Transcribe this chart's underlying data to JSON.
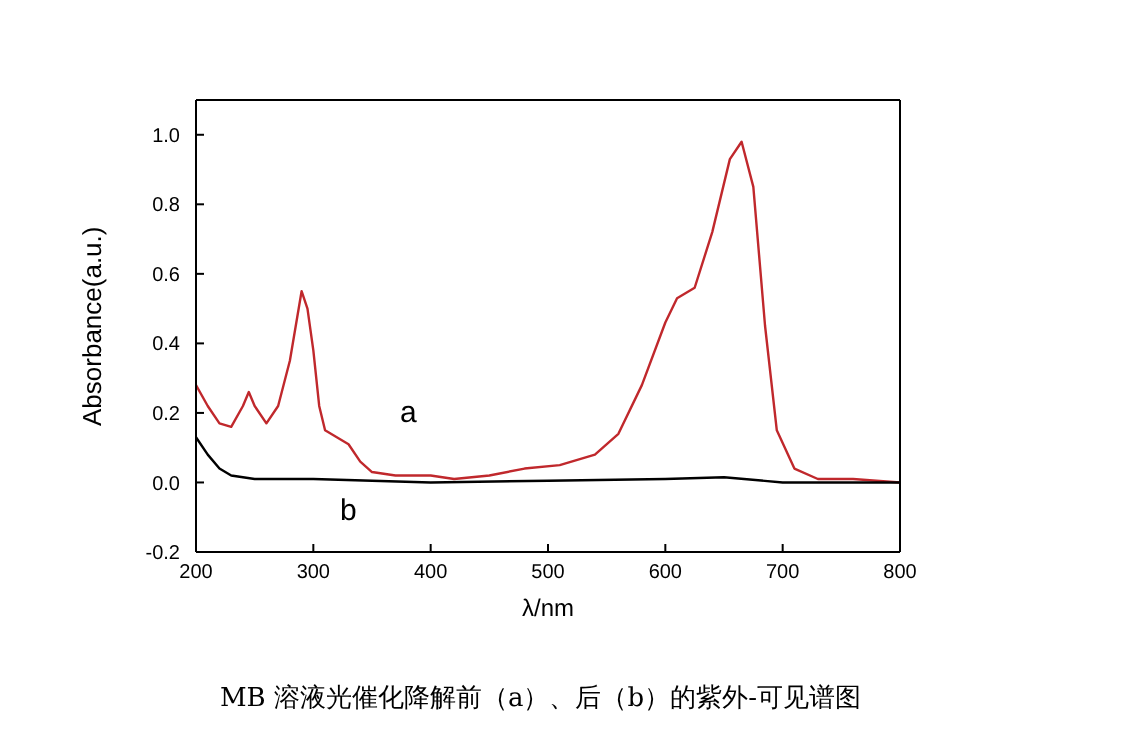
{
  "chart_data": {
    "type": "line",
    "xlabel": "λ/nm",
    "ylabel": "Absorbance(a.u.)",
    "xlim": [
      200,
      800
    ],
    "xticks": [
      200,
      300,
      400,
      500,
      600,
      700,
      800
    ],
    "ylim": [
      -0.2,
      1.1
    ],
    "yticks": [
      -0.2,
      {
        "value": 0,
        "label": "0.0"
      },
      0.2,
      0.4,
      0.6,
      0.8,
      {
        "value": 1,
        "label": "1.0"
      }
    ],
    "grid": false,
    "marker": "none",
    "line_style": "solid",
    "series": [
      {
        "color": "#c0282c",
        "x": [
          200,
          210,
          220,
          230,
          240,
          245,
          250,
          260,
          270,
          280,
          290,
          295,
          300,
          305,
          310,
          320,
          330,
          340,
          350,
          370,
          400,
          420,
          450,
          480,
          510,
          540,
          560,
          580,
          600,
          610,
          625,
          640,
          655,
          665,
          675,
          685,
          695,
          710,
          730,
          760,
          800
        ],
        "values": [
          0.28,
          0.22,
          0.17,
          0.16,
          0.22,
          0.26,
          0.22,
          0.17,
          0.22,
          0.35,
          0.55,
          0.5,
          0.38,
          0.22,
          0.15,
          0.13,
          0.11,
          0.06,
          0.03,
          0.02,
          0.02,
          0.01,
          0.02,
          0.04,
          0.05,
          0.08,
          0.14,
          0.28,
          0.46,
          0.53,
          0.56,
          0.72,
          0.93,
          0.98,
          0.85,
          0.45,
          0.15,
          0.04,
          0.01,
          0.01,
          0.0
        ]
      },
      {
        "color": "#000000",
        "x": [
          200,
          210,
          220,
          230,
          250,
          300,
          400,
          500,
          600,
          650,
          700,
          800
        ],
        "values": [
          0.13,
          0.08,
          0.04,
          0.02,
          0.01,
          0.01,
          0.0,
          0.005,
          0.01,
          0.015,
          0.0,
          0.0
        ]
      }
    ],
    "annotations": [
      "a",
      "b",
      "MB 溶液光催化降解前（a）、后（b）的紫外-可见谱图"
    ]
  }
}
